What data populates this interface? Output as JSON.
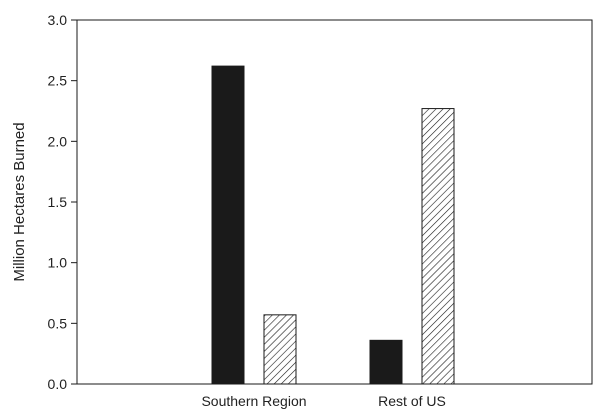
{
  "chart_data": {
    "type": "bar",
    "title": "",
    "xlabel": "",
    "ylabel": "Million Hectares Burned",
    "categories": [
      "Southern Region",
      "Rest of US"
    ],
    "series": [
      {
        "values": [
          2.62,
          0.36
        ],
        "pattern": "solid",
        "color": "#1a1a1a"
      },
      {
        "values": [
          0.57,
          2.27
        ],
        "pattern": "hatched",
        "color": "#1a1a1a"
      }
    ],
    "ylim": [
      0,
      3.0
    ],
    "yticks": [
      "0.0",
      "0.5",
      "1.0",
      "1.5",
      "2.0",
      "2.5",
      "3.0"
    ],
    "grid": false,
    "legend": "none"
  }
}
